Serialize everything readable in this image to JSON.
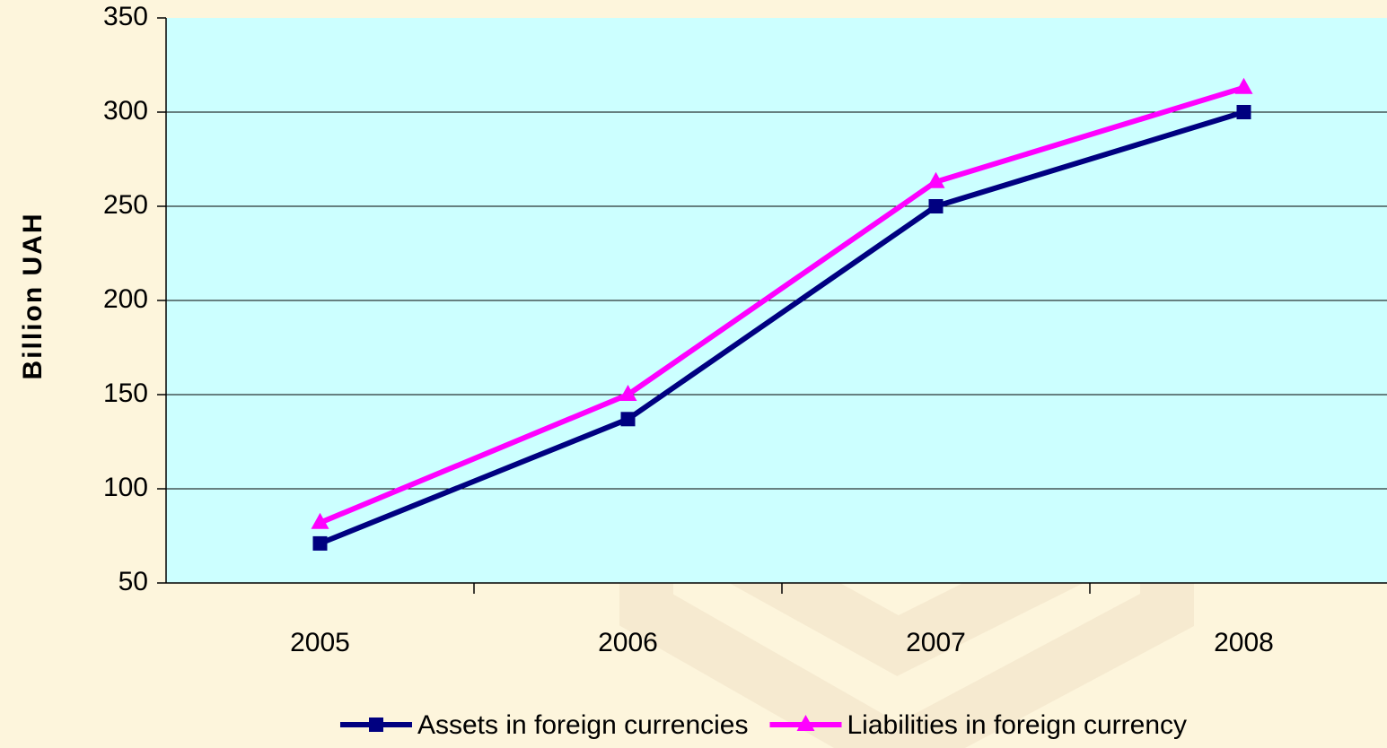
{
  "chart_data": {
    "type": "line",
    "y_label": "Billion UAH",
    "categories": [
      "2005",
      "2006",
      "2007",
      "2008"
    ],
    "series": [
      {
        "name": "Assets in foreign currencies",
        "color": "#000080",
        "marker": "square",
        "values": [
          71,
          137,
          250,
          300
        ]
      },
      {
        "name": "Liabilities in foreign currency",
        "color": "#ff00ff",
        "marker": "triangle",
        "values": [
          82,
          150,
          263,
          313
        ]
      }
    ],
    "ylim": [
      50,
      350
    ],
    "yticks": [
      50,
      100,
      150,
      200,
      250,
      300,
      350
    ],
    "grid": true,
    "plot_background": "#ccffff",
    "legend": "bottom"
  }
}
